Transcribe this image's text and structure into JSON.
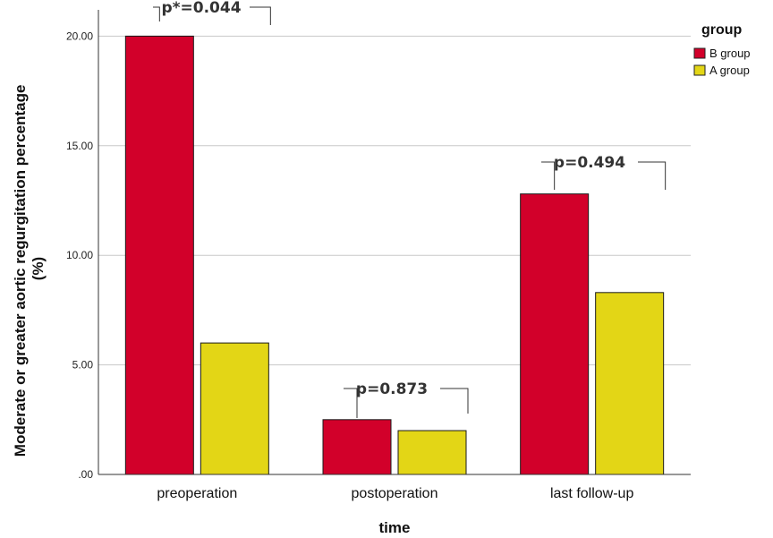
{
  "chart_data": {
    "type": "bar",
    "xlabel": "time",
    "ylabel": "Moderate or greater aortic regurgitation percentage (%)",
    "ylabel_lines": [
      "Moderate or greater aortic regurgitation percentage",
      "(%)"
    ],
    "categories": [
      "preoperation",
      "postoperation",
      "last follow-up"
    ],
    "series": [
      {
        "name": "B group",
        "color": "#d2002a",
        "values": [
          20.0,
          2.5,
          12.8
        ]
      },
      {
        "name": "A group",
        "color": "#e3d616",
        "values": [
          6.0,
          2.0,
          8.3
        ]
      }
    ],
    "ylim": [
      0,
      21.2
    ],
    "yticks": [
      0,
      5,
      10,
      15,
      20
    ],
    "ytick_labels": [
      ".00",
      "5.00",
      "10.00",
      "15.00",
      "20.00"
    ],
    "grid": true,
    "legend": {
      "title": "group",
      "position": "top-right"
    },
    "annotations": [
      "p*=0.044",
      "p=0.873",
      "p=0.494"
    ]
  }
}
